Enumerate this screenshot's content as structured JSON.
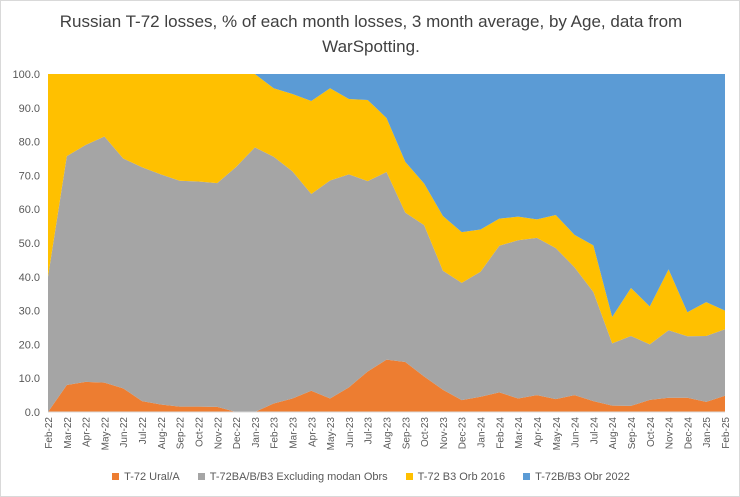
{
  "chart_data": {
    "type": "area",
    "stacked": true,
    "title": "Russian T-72 losses, % of each month losses, 3 month average, by Age, data from WarSpotting.",
    "xlabel": "",
    "ylabel": "",
    "ylim": [
      0,
      100
    ],
    "y_ticks": [
      "0.0",
      "10.0",
      "20.0",
      "30.0",
      "40.0",
      "50.0",
      "60.0",
      "70.0",
      "80.0",
      "90.0",
      "100.0"
    ],
    "grid": false,
    "legend_position": "bottom",
    "categories": [
      "Feb-22",
      "Mar-22",
      "Apr-22",
      "May-22",
      "Jun-22",
      "Jul-22",
      "Aug-22",
      "Sep-22",
      "Oct-22",
      "Nov-22",
      "Dec-22",
      "Jan-23",
      "Feb-23",
      "Mar-23",
      "Apr-23",
      "May-23",
      "Jun-23",
      "Jul-23",
      "Aug-23",
      "Sep-23",
      "Oct-23",
      "Nov-23",
      "Dec-23",
      "Jan-24",
      "Feb-24",
      "Mar-24",
      "Apr-24",
      "May-24",
      "Jun-24",
      "Jul-24",
      "Aug-24",
      "Sep-24",
      "Oct-24",
      "Nov-24",
      "Dec-24",
      "Jan-25",
      "Feb-25"
    ],
    "series": [
      {
        "name": "T-72 Ural/A",
        "color": "#ed7d31",
        "values": [
          0,
          8.0,
          8.9,
          8.7,
          7.0,
          3.2,
          2.2,
          1.6,
          1.6,
          1.5,
          0,
          0,
          2.5,
          4.0,
          6.3,
          4.0,
          7.3,
          12.0,
          15.5,
          14.8,
          10.5,
          6.6,
          3.5,
          4.5,
          5.8,
          4.0,
          5.0,
          3.8,
          5.0,
          3.2,
          1.9,
          1.8,
          3.6,
          4.2,
          4.2,
          3.0,
          4.8
        ]
      },
      {
        "name": "T-72BA/B/B3 Excluding modan Obrs",
        "color": "#a5a5a5",
        "values": [
          40.0,
          67.7,
          70.1,
          72.8,
          68.0,
          69.2,
          68.1,
          66.8,
          66.6,
          66.2,
          72.5,
          78.3,
          73.0,
          67.2,
          58.2,
          64.5,
          63.0,
          56.3,
          55.5,
          44.2,
          44.8,
          35.2,
          34.7,
          37.0,
          43.4,
          46.8,
          46.5,
          44.7,
          37.8,
          32.3,
          18.4,
          20.7,
          16.4,
          20.0,
          18.2,
          19.5,
          19.7
        ]
      },
      {
        "name": "T-72 B3 Orb 2016",
        "color": "#ffc000",
        "values": [
          60.0,
          24.3,
          21.0,
          18.5,
          25.0,
          27.6,
          29.7,
          31.6,
          31.8,
          32.3,
          27.5,
          21.7,
          20.3,
          22.9,
          27.5,
          27.3,
          22.3,
          24.0,
          16.0,
          15.0,
          12.3,
          16.2,
          15.0,
          12.5,
          8.0,
          7.0,
          5.5,
          9.8,
          9.6,
          13.8,
          7.8,
          14.2,
          11.2,
          18.0,
          7.1,
          10.0,
          5.5
        ]
      },
      {
        "name": "T-72B/B3 Obr 2022",
        "color": "#5b9bd5",
        "values": [
          0,
          0,
          0,
          0,
          0,
          0,
          0,
          0,
          0,
          0,
          0,
          0,
          4.2,
          5.9,
          8.0,
          4.2,
          7.4,
          7.7,
          13.0,
          26.0,
          32.4,
          42.0,
          46.8,
          46.0,
          42.8,
          42.2,
          43.0,
          41.7,
          47.6,
          50.7,
          71.9,
          63.3,
          68.8,
          57.8,
          70.5,
          67.5,
          70.0
        ]
      }
    ]
  }
}
